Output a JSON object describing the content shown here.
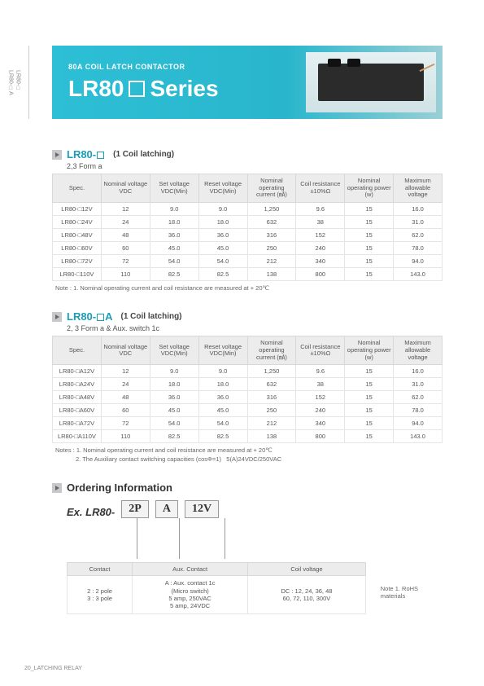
{
  "sidetab": {
    "line1": "LR80-□",
    "line2": "LR80-□A"
  },
  "hero": {
    "subtitle": "80A  COIL LATCH CONTACTOR",
    "title_prefix": "LR80",
    "title_suffix": "Series"
  },
  "section1": {
    "title": "LR80-",
    "note": "(1 Coil latching)",
    "form": "2,3 Form a",
    "headers": [
      "Spec.",
      "Nominal voltage VDC",
      "Set voltage VDC(Min)",
      "Reset voltage VDC(Min)",
      "Nominal operating current (㎃)",
      "Coil resistance ±10%Ω",
      "Nominal operating power (w)",
      "Maximum allowable voltage"
    ],
    "rows": [
      [
        "LR80-□12V",
        "12",
        "9.0",
        "9.0",
        "1,250",
        "9.6",
        "15",
        "16.0"
      ],
      [
        "LR80-□24V",
        "24",
        "18.0",
        "18.0",
        "632",
        "38",
        "15",
        "31.0"
      ],
      [
        "LR80-□48V",
        "48",
        "36.0",
        "36.0",
        "316",
        "152",
        "15",
        "62.0"
      ],
      [
        "LR80-□60V",
        "60",
        "45.0",
        "45.0",
        "250",
        "240",
        "15",
        "78.0"
      ],
      [
        "LR80-□72V",
        "72",
        "54.0",
        "54.0",
        "212",
        "340",
        "15",
        "94.0"
      ],
      [
        "LR80-□110V",
        "110",
        "82.5",
        "82.5",
        "138",
        "800",
        "15",
        "143.0"
      ]
    ],
    "footnote": "Note : 1. Nominal operating current and coil resistance are measured at + 20℃"
  },
  "section2": {
    "title": "LR80-",
    "title_suffix": "A",
    "note": "(1 Coil latching)",
    "form": "2, 3 Form a & Aux. switch 1c",
    "headers": [
      "Spec.",
      "Nominal voltage VDC",
      "Set voltage VDC(Min)",
      "Reset voltage VDC(Min)",
      "Nominal operating current (㎃)",
      "Coil resistance ±10%Ω",
      "Nominal operating power (w)",
      "Maximum allowable voltage"
    ],
    "rows": [
      [
        "LR80-□A12V",
        "12",
        "9.0",
        "9.0",
        "1,250",
        "9.6",
        "15",
        "16.0"
      ],
      [
        "LR80-□A24V",
        "24",
        "18.0",
        "18.0",
        "632",
        "38",
        "15",
        "31.0"
      ],
      [
        "LR80-□A48V",
        "48",
        "36.0",
        "36.0",
        "316",
        "152",
        "15",
        "62.0"
      ],
      [
        "LR80-□A60V",
        "60",
        "45.0",
        "45.0",
        "250",
        "240",
        "15",
        "78.0"
      ],
      [
        "LR80-□A72V",
        "72",
        "54.0",
        "54.0",
        "212",
        "340",
        "15",
        "94.0"
      ],
      [
        "LR80-□A110V",
        "110",
        "82.5",
        "82.5",
        "138",
        "800",
        "15",
        "143.0"
      ]
    ],
    "footnote": "Notes : 1. Nominal operating current and coil resistance are measured at + 20℃\n            2. The Auxiliary contact switching capacities (cosΦ=1)   5(A)24VDC/250VAC"
  },
  "ordering": {
    "title": "Ordering Information",
    "ex_label": "Ex.  LR80-",
    "codes": [
      "2P",
      "A",
      "12V"
    ],
    "cols": [
      "Contact",
      "Aux. Contact",
      "Coil voltage"
    ],
    "vals": [
      "2 : 2 pole\n3 : 3 pole",
      "A : Aux. contact 1c\n(Micro switch)\n5 amp, 250VAC\n5 amp, 24VDC",
      "DC : 12, 24, 36, 48\n60, 72, 110, 300V"
    ],
    "rohs": "Note 1. RoHS materials"
  },
  "footer": "20_LATCHING RELAY"
}
